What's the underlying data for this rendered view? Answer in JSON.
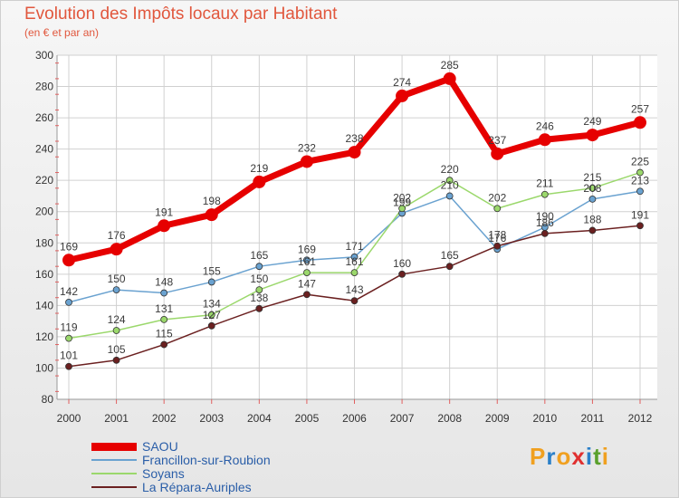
{
  "title": "Evolution des Impôts locaux par Habitant",
  "subtitle": "(en € et par an)",
  "logo": {
    "letters": [
      "P",
      "r",
      "o",
      "x",
      "i",
      "t",
      "i"
    ],
    "colors": [
      "#f0a020",
      "#2a7fc8",
      "#f0a020",
      "#e03030",
      "#2a7fc8",
      "#5aa02c",
      "#f0a020"
    ]
  },
  "chart_data": {
    "type": "line",
    "title": "Evolution des Impôts locaux par Habitant",
    "subtitle": "(en € et par an)",
    "xlabel": "",
    "ylabel": "",
    "categories": [
      "2000",
      "2001",
      "2002",
      "2003",
      "2004",
      "2005",
      "2006",
      "2007",
      "2008",
      "2009",
      "2010",
      "2011",
      "2012"
    ],
    "ylim": [
      80,
      300
    ],
    "yticks": [
      80,
      100,
      120,
      140,
      160,
      180,
      200,
      220,
      240,
      260,
      280,
      300
    ],
    "grid": true,
    "legend_position": "bottom-left",
    "series": [
      {
        "name": "SAOU",
        "color": "#e60000",
        "values": [
          169,
          176,
          191,
          198,
          219,
          232,
          238,
          274,
          285,
          237,
          246,
          249,
          257
        ]
      },
      {
        "name": "Francillon-sur-Roubion",
        "color": "#6aa2d0",
        "values": [
          142,
          150,
          148,
          155,
          165,
          169,
          171,
          199,
          210,
          176,
          190,
          208,
          213
        ]
      },
      {
        "name": "Soyans",
        "color": "#9bd86c",
        "values": [
          119,
          124,
          131,
          134,
          150,
          161,
          161,
          202,
          220,
          202,
          211,
          215,
          225
        ]
      },
      {
        "name": "La Répara-Auriples",
        "color": "#6b2020",
        "values": [
          101,
          105,
          115,
          127,
          138,
          147,
          143,
          160,
          165,
          178,
          186,
          188,
          191
        ]
      }
    ],
    "value_labels": [
      [
        "169",
        "176",
        "191",
        "198",
        "219",
        "232",
        "238",
        "274",
        "285",
        "237",
        "246",
        "249",
        "257"
      ],
      [
        "142",
        "150",
        "148",
        "155",
        "165",
        "169",
        "171",
        "199",
        "210",
        "176",
        "190",
        "208",
        "213"
      ],
      [
        "119",
        "124",
        "131",
        "134",
        "150",
        "161",
        "161",
        "202",
        "220",
        "202",
        "211",
        "215",
        "225"
      ],
      [
        "101",
        "105",
        "115",
        "127",
        "138",
        "147",
        "143",
        "160",
        "165",
        "178",
        "186",
        "188",
        "191"
      ]
    ]
  }
}
